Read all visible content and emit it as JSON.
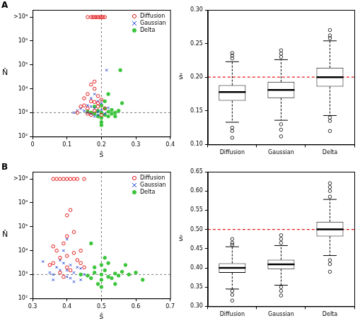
{
  "chart_data": [
    {
      "type": "scatter",
      "panel": "A",
      "x_label": "ŝ",
      "y_label": "N̂",
      "log": "y",
      "legend": "top-right",
      "xlim": [
        0,
        0.4
      ],
      "xticks": [
        0,
        0.1,
        0.2,
        0.3,
        0.4
      ],
      "ylim": [
        100,
        20000000
      ],
      "yticks": [
        {
          "value": 100,
          "label": "10²"
        },
        {
          "value": 1000,
          "label": "10³"
        },
        {
          "value": 10000,
          "label": "10⁴"
        },
        {
          "value": 100000,
          "label": "10⁵"
        },
        {
          "value": 1000000,
          "label": "10⁶"
        },
        {
          "value": 10000000,
          "label": ">10⁸"
        }
      ],
      "reference_lines": {
        "x": 0.2,
        "y": 1000
      },
      "series": [
        {
          "name": "Diffusion",
          "color": "#e41a1c",
          "marker": "open_circle",
          "values": [
            [
              0.15,
              2000
            ],
            [
              0.16,
              1500
            ],
            [
              0.17,
              3000
            ],
            [
              0.18,
              1200
            ],
            [
              0.19,
              5000
            ],
            [
              0.2,
              800
            ],
            [
              0.17,
              800
            ],
            [
              0.16,
              6000
            ],
            [
              0.18,
              10000
            ],
            [
              0.19,
              2500
            ],
            [
              0.14,
              1800
            ],
            [
              0.15,
              4000
            ],
            [
              0.2,
              3500
            ],
            [
              0.21,
              1500
            ],
            [
              0.18,
              20000
            ],
            [
              0.17,
              15000
            ],
            [
              0.16,
              900
            ],
            [
              0.19,
              1800
            ],
            [
              0.13,
              1000
            ],
            [
              0.18,
              2800
            ],
            [
              0.16,
              10000000
            ],
            [
              0.17,
              10000000
            ],
            [
              0.175,
              10000000
            ],
            [
              0.18,
              10000000
            ],
            [
              0.185,
              10000000
            ],
            [
              0.19,
              10000000
            ],
            [
              0.195,
              10000000
            ],
            [
              0.2,
              10000000
            ],
            [
              0.205,
              10000000
            ],
            [
              0.21,
              10000000
            ]
          ]
        },
        {
          "name": "Gaussian",
          "color": "#1f3fd6",
          "marker": "x",
          "values": [
            [
              0.15,
              1200
            ],
            [
              0.16,
              2000
            ],
            [
              0.17,
              900
            ],
            [
              0.18,
              1500
            ],
            [
              0.19,
              1100
            ],
            [
              0.2,
              2500
            ],
            [
              0.21,
              900
            ],
            [
              0.17,
              4000
            ],
            [
              0.18,
              700
            ],
            [
              0.19,
              3000
            ],
            [
              0.16,
              1000
            ],
            [
              0.2,
              1300
            ],
            [
              0.22,
              1600
            ],
            [
              0.14,
              1500
            ],
            [
              0.18,
              6000
            ],
            [
              0.215,
              60000
            ],
            [
              0.12,
              1000
            ],
            [
              0.13,
              1200
            ],
            [
              0.19,
              800
            ],
            [
              0.17,
              1800
            ]
          ]
        },
        {
          "name": "Delta",
          "color": "#3cc43c",
          "marker": "filled_circle",
          "values": [
            [
              0.2,
              1000
            ],
            [
              0.21,
              800
            ],
            [
              0.19,
              1200
            ],
            [
              0.22,
              1100
            ],
            [
              0.18,
              900
            ],
            [
              0.23,
              1300
            ],
            [
              0.2,
              600
            ],
            [
              0.21,
              1500
            ],
            [
              0.24,
              1000
            ],
            [
              0.19,
              700
            ],
            [
              0.2,
              2000
            ],
            [
              0.22,
              700
            ],
            [
              0.25,
              1200
            ],
            [
              0.17,
              1000
            ],
            [
              0.21,
              3000
            ],
            [
              0.23,
              900
            ],
            [
              0.2,
              400
            ],
            [
              0.26,
              2500
            ],
            [
              0.18,
              1800
            ],
            [
              0.22,
              6000
            ],
            [
              0.2,
              300
            ],
            [
              0.24,
              700
            ],
            [
              0.255,
              60000
            ],
            [
              0.16,
              1100
            ]
          ]
        }
      ]
    },
    {
      "type": "box",
      "y_label": "ŝ",
      "categories": [
        "Diffusion",
        "Gaussian",
        "Delta"
      ],
      "ylim": [
        0.1,
        0.3
      ],
      "yticks": [
        {
          "value": 0.1,
          "label": "0.10"
        },
        0.15,
        {
          "value": 0.2,
          "label": "0.20"
        },
        0.25,
        {
          "value": 0.3,
          "label": "0.30"
        }
      ],
      "reference_lines": {
        "y": 0.2
      },
      "stats": [
        {
          "min": 0.133,
          "q1": 0.165,
          "median": 0.178,
          "q3": 0.188,
          "max": 0.223,
          "outliers": [
            0.228,
            0.232,
            0.236,
            0.125,
            0.12,
            0.11
          ]
        },
        {
          "min": 0.136,
          "q1": 0.169,
          "median": 0.181,
          "q3": 0.193,
          "max": 0.226,
          "outliers": [
            0.23,
            0.235,
            0.24,
            0.13,
            0.122,
            0.112
          ]
        },
        {
          "min": 0.143,
          "q1": 0.186,
          "median": 0.2,
          "q3": 0.214,
          "max": 0.254,
          "outliers": [
            0.258,
            0.262,
            0.27,
            0.14,
            0.135,
            0.12
          ]
        }
      ]
    },
    {
      "type": "scatter",
      "panel": "B",
      "x_label": "ŝ",
      "y_label": "N̂",
      "log": "y",
      "legend": "top-right",
      "xlim": [
        0.3,
        0.7
      ],
      "xticks": [
        0.3,
        0.4,
        0.5,
        0.6,
        0.7
      ],
      "ylim": [
        100,
        20000000
      ],
      "yticks": [
        {
          "value": 100,
          "label": "10²"
        },
        {
          "value": 1000,
          "label": "10³"
        },
        {
          "value": 10000,
          "label": "10⁴"
        },
        {
          "value": 100000,
          "label": "10⁵"
        },
        {
          "value": 1000000,
          "label": "10⁶"
        },
        {
          "value": 10000000,
          "label": ">10⁸"
        }
      ],
      "reference_lines": {
        "x": 0.5,
        "y": 1000
      },
      "series": [
        {
          "name": "Diffusion",
          "color": "#e41a1c",
          "marker": "open_circle",
          "values": [
            [
              0.36,
              3000
            ],
            [
              0.38,
              5000
            ],
            [
              0.4,
              2000
            ],
            [
              0.42,
              8000
            ],
            [
              0.44,
              3000
            ],
            [
              0.37,
              10000
            ],
            [
              0.39,
              20000
            ],
            [
              0.41,
              1500
            ],
            [
              0.43,
              4000
            ],
            [
              0.35,
              2500
            ],
            [
              0.4,
              40000
            ],
            [
              0.42,
              60000
            ],
            [
              0.38,
              1200
            ],
            [
              0.45,
              2000
            ],
            [
              0.4,
              6000
            ],
            [
              0.36,
              15000
            ],
            [
              0.44,
              10000
            ],
            [
              0.39,
              800
            ],
            [
              0.41,
              500000
            ],
            [
              0.4,
              300000
            ],
            [
              0.36,
              10000000
            ],
            [
              0.37,
              10000000
            ],
            [
              0.38,
              10000000
            ],
            [
              0.39,
              10000000
            ],
            [
              0.4,
              10000000
            ],
            [
              0.41,
              10000000
            ],
            [
              0.42,
              10000000
            ],
            [
              0.43,
              10000000
            ],
            [
              0.45,
              10000000
            ]
          ]
        },
        {
          "name": "Gaussian",
          "color": "#1f3fd6",
          "marker": "x",
          "values": [
            [
              0.36,
              1000
            ],
            [
              0.38,
              1500
            ],
            [
              0.4,
              800
            ],
            [
              0.42,
              1200
            ],
            [
              0.44,
              600
            ],
            [
              0.37,
              2000
            ],
            [
              0.39,
              3000
            ],
            [
              0.41,
              700
            ],
            [
              0.43,
              2000
            ],
            [
              0.35,
              1200
            ],
            [
              0.4,
              1500
            ],
            [
              0.42,
              500
            ],
            [
              0.38,
              4000
            ],
            [
              0.45,
              1000
            ],
            [
              0.4,
              30000
            ],
            [
              0.36,
              600
            ],
            [
              0.44,
              1800
            ],
            [
              0.39,
              10000
            ],
            [
              0.33,
              3500
            ],
            [
              0.41,
              2500
            ]
          ]
        },
        {
          "name": "Delta",
          "color": "#3cc43c",
          "marker": "filled_circle",
          "values": [
            [
              0.5,
              1000
            ],
            [
              0.52,
              800
            ],
            [
              0.48,
              1200
            ],
            [
              0.54,
              1100
            ],
            [
              0.46,
              900
            ],
            [
              0.56,
              1300
            ],
            [
              0.5,
              600
            ],
            [
              0.51,
              1500
            ],
            [
              0.58,
              1000
            ],
            [
              0.47,
              700
            ],
            [
              0.5,
              2500
            ],
            [
              0.53,
              700
            ],
            [
              0.6,
              1200
            ],
            [
              0.44,
              1000
            ],
            [
              0.52,
              3000
            ],
            [
              0.55,
              900
            ],
            [
              0.49,
              400
            ],
            [
              0.62,
              600
            ],
            [
              0.48,
              2000
            ],
            [
              0.51,
              5000
            ],
            [
              0.47,
              20000
            ],
            [
              0.5,
              300
            ],
            [
              0.57,
              2500
            ],
            [
              0.54,
              400
            ]
          ]
        }
      ]
    },
    {
      "type": "box",
      "y_label": "ŝ",
      "categories": [
        "Diffusion",
        "Gaussian",
        "Delta"
      ],
      "ylim": [
        0.3,
        0.65
      ],
      "yticks": [
        {
          "value": 0.3,
          "label": "0.30"
        },
        0.35,
        {
          "value": 0.4,
          "label": "0.40"
        },
        0.45,
        {
          "value": 0.5,
          "label": "0.50"
        },
        0.55,
        {
          "value": 0.6,
          "label": "0.60"
        },
        0.65
      ],
      "reference_lines": {
        "y": 0.5
      },
      "stats": [
        {
          "min": 0.345,
          "q1": 0.387,
          "median": 0.4,
          "q3": 0.412,
          "max": 0.455,
          "outliers": [
            0.46,
            0.465,
            0.475,
            0.34,
            0.33,
            0.315
          ]
        },
        {
          "min": 0.355,
          "q1": 0.397,
          "median": 0.409,
          "q3": 0.421,
          "max": 0.458,
          "outliers": [
            0.465,
            0.475,
            0.485,
            0.35,
            0.34,
            0.328
          ]
        },
        {
          "min": 0.432,
          "q1": 0.482,
          "median": 0.5,
          "q3": 0.52,
          "max": 0.578,
          "outliers": [
            0.585,
            0.6,
            0.61,
            0.62,
            0.42,
            0.41,
            0.39
          ]
        }
      ]
    }
  ]
}
